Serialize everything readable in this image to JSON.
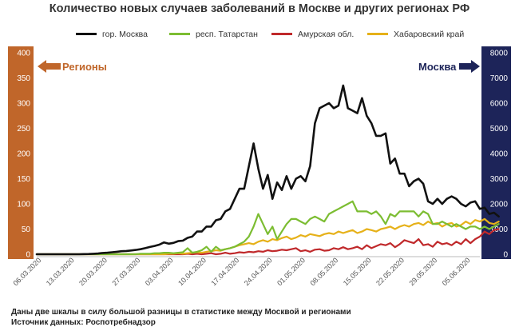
{
  "chart_data": {
    "type": "line",
    "title": "Количество новых случаев заболеваний в Москве и других регионах РФ",
    "footnotes": [
      "Даны две шкалы в силу большой разницы в статистике между Москвой и регионами",
      "Источник данных: Роспотребнадзор"
    ],
    "left_axis": {
      "title": "Регионы",
      "ylim": [
        0,
        400
      ],
      "ticks": [
        0,
        50,
        100,
        150,
        200,
        250,
        300,
        350,
        400
      ],
      "color": "#c0662a"
    },
    "right_axis": {
      "title": "Москва",
      "ylim": [
        0,
        8000
      ],
      "ticks": [
        0,
        1000,
        2000,
        3000,
        4000,
        5000,
        6000,
        7000,
        8000
      ],
      "color": "#1d2459"
    },
    "x_start": "06.03.2020",
    "x_end": "08.06.2020",
    "x_tick_labels": [
      "06.03.2020",
      "13.03.2020",
      "20.03.2020",
      "27.03.2020",
      "03.04.2020",
      "10.04.2020",
      "17.04.2020",
      "24.04.2020",
      "01.05.2020",
      "08.05.2020",
      "15.05.2020",
      "22.05.2020",
      "29.05.2020",
      "05.06.2020"
    ],
    "legend_placement": "top",
    "grid": false,
    "series": [
      {
        "name": "гор. Москва",
        "axis": "right",
        "color": "#111111",
        "values": [
          0,
          0,
          0,
          0,
          0,
          0,
          0,
          0,
          0,
          0,
          5,
          10,
          20,
          30,
          50,
          60,
          80,
          100,
          120,
          130,
          150,
          170,
          200,
          240,
          290,
          330,
          380,
          470,
          420,
          450,
          520,
          540,
          650,
          700,
          900,
          900,
          1100,
          1100,
          1350,
          1400,
          1700,
          1800,
          2200,
          2600,
          2600,
          3500,
          4400,
          3400,
          2600,
          3150,
          2200,
          2850,
          2550,
          3100,
          2600,
          3000,
          3100,
          2900,
          3500,
          5200,
          5800,
          5900,
          6000,
          5800,
          5900,
          6700,
          5800,
          5700,
          5600,
          6200,
          5500,
          5200,
          4700,
          4700,
          4800,
          3600,
          3800,
          3200,
          3200,
          2700,
          2900,
          3000,
          2800,
          2100,
          2000,
          2200,
          2000,
          2200,
          2300,
          2200,
          2000,
          1900,
          2050,
          2100,
          1800,
          1850,
          1600,
          1650,
          1500
        ]
      },
      {
        "name": "респ. Татарстан",
        "axis": "left",
        "color": "#7cbd32",
        "values": [
          0,
          0,
          0,
          0,
          0,
          0,
          0,
          0,
          0,
          0,
          0,
          0,
          0,
          0,
          0,
          0,
          0,
          0,
          0,
          0,
          0,
          0,
          1,
          1,
          1,
          2,
          2,
          3,
          3,
          2,
          3,
          4,
          12,
          3,
          5,
          8,
          15,
          5,
          15,
          8,
          10,
          12,
          15,
          20,
          25,
          35,
          55,
          80,
          60,
          40,
          55,
          30,
          45,
          60,
          70,
          70,
          65,
          60,
          70,
          75,
          70,
          65,
          80,
          85,
          90,
          95,
          100,
          105,
          85,
          85,
          85,
          80,
          85,
          75,
          60,
          80,
          75,
          85,
          85,
          85,
          85,
          75,
          85,
          80,
          60,
          60,
          65,
          60,
          55,
          60,
          55,
          50,
          55,
          55,
          50,
          55,
          50,
          55,
          60
        ]
      },
      {
        "name": "Амурская обл.",
        "axis": "left",
        "color": "#c0292b",
        "values": [
          0,
          0,
          0,
          0,
          0,
          0,
          0,
          0,
          0,
          0,
          0,
          0,
          0,
          0,
          0,
          0,
          0,
          0,
          0,
          0,
          0,
          0,
          0,
          0,
          0,
          0,
          0,
          0,
          0,
          0,
          0,
          0,
          1,
          0,
          1,
          0,
          1,
          2,
          0,
          1,
          3,
          1,
          2,
          4,
          3,
          5,
          4,
          6,
          5,
          8,
          6,
          7,
          9,
          8,
          10,
          12,
          6,
          8,
          5,
          9,
          10,
          7,
          8,
          12,
          10,
          14,
          10,
          12,
          15,
          10,
          18,
          12,
          16,
          20,
          18,
          22,
          14,
          20,
          28,
          25,
          22,
          30,
          18,
          20,
          15,
          25,
          20,
          22,
          18,
          25,
          20,
          30,
          22,
          30,
          35,
          45,
          40,
          48,
          50
        ]
      },
      {
        "name": "Хабаровский край",
        "axis": "left",
        "color": "#e6b119",
        "values": [
          0,
          0,
          0,
          0,
          0,
          0,
          0,
          0,
          0,
          0,
          0,
          0,
          0,
          0,
          0,
          0,
          0,
          0,
          0,
          0,
          0,
          0,
          0,
          0,
          0,
          0,
          0,
          0,
          1,
          1,
          2,
          1,
          2,
          3,
          4,
          3,
          5,
          6,
          8,
          7,
          10,
          12,
          15,
          18,
          20,
          22,
          20,
          25,
          28,
          25,
          30,
          28,
          32,
          35,
          30,
          33,
          38,
          35,
          40,
          38,
          36,
          40,
          42,
          40,
          45,
          42,
          45,
          48,
          42,
          45,
          50,
          48,
          45,
          50,
          52,
          55,
          50,
          55,
          58,
          55,
          60,
          62,
          58,
          65,
          60,
          62,
          55,
          60,
          62,
          55,
          58,
          65,
          60,
          68,
          65,
          70,
          62,
          60,
          65
        ]
      }
    ]
  }
}
